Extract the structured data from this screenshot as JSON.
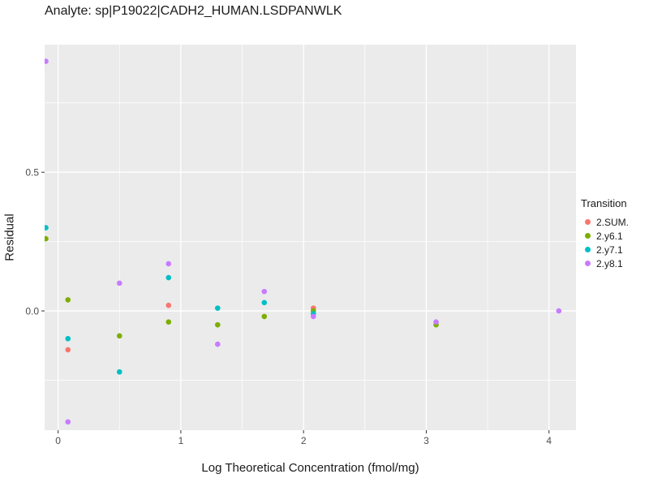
{
  "chart_data": {
    "type": "scatter",
    "title": "Analyte: sp|P19022|CADH2_HUMAN.LSDPANWLK",
    "xlabel": "Log Theoretical Concentration (fmol/mg)",
    "ylabel": "Residual",
    "xlim": [
      -0.11,
      4.22
    ],
    "ylim": [
      -0.43,
      0.96
    ],
    "grid": true,
    "panel_bg": "#EBEBEB",
    "grid_color": "#FFFFFF",
    "tick_text_color": "#4D4D4D",
    "tick_mark_color": "#333333",
    "x_ticks": [
      {
        "v": 0,
        "label": "0"
      },
      {
        "v": 1,
        "label": "1"
      },
      {
        "v": 2,
        "label": "2"
      },
      {
        "v": 3,
        "label": "3"
      },
      {
        "v": 4,
        "label": "4"
      }
    ],
    "x_minor": [
      0.5,
      1.5,
      2.5,
      3.5
    ],
    "y_ticks": [
      {
        "v": 0.0,
        "label": "0.0"
      },
      {
        "v": 0.5,
        "label": "0.5"
      }
    ],
    "y_minor": [
      -0.25,
      0.25,
      0.75
    ],
    "legend_position": "right",
    "legend_title": "Transition",
    "legend_items": [
      {
        "label": "2.SUM.",
        "color": "#F8766D"
      },
      {
        "label": "2.y6.1",
        "color": "#7CAE00"
      },
      {
        "label": "2.y7.1",
        "color": "#00BFC4"
      },
      {
        "label": "2.y8.1",
        "color": "#C77CFF"
      }
    ],
    "series": [
      {
        "name": "2.SUM.",
        "color": "#F8766D",
        "points": [
          [
            0.08,
            -0.14
          ],
          [
            0.9,
            0.02
          ],
          [
            2.08,
            0.01
          ]
        ]
      },
      {
        "name": "2.y6.1",
        "color": "#7CAE00",
        "points": [
          [
            -0.1,
            0.26
          ],
          [
            0.08,
            0.04
          ],
          [
            0.5,
            -0.09
          ],
          [
            0.9,
            -0.04
          ],
          [
            1.3,
            -0.05
          ],
          [
            1.68,
            -0.02
          ],
          [
            2.08,
            0.0
          ],
          [
            3.08,
            -0.05
          ]
        ]
      },
      {
        "name": "2.y7.1",
        "color": "#00BFC4",
        "points": [
          [
            -0.1,
            0.3
          ],
          [
            0.08,
            -0.1
          ],
          [
            0.5,
            -0.22
          ],
          [
            0.9,
            0.12
          ],
          [
            1.3,
            0.01
          ],
          [
            1.68,
            0.03
          ],
          [
            2.08,
            -0.01
          ]
        ]
      },
      {
        "name": "2.y8.1",
        "color": "#C77CFF",
        "points": [
          [
            -0.1,
            0.9
          ],
          [
            0.08,
            -0.4
          ],
          [
            0.5,
            0.1
          ],
          [
            0.9,
            0.17
          ],
          [
            1.3,
            -0.12
          ],
          [
            1.68,
            0.07
          ],
          [
            2.08,
            -0.02
          ],
          [
            3.08,
            -0.04
          ],
          [
            4.08,
            0.0
          ]
        ]
      }
    ]
  }
}
